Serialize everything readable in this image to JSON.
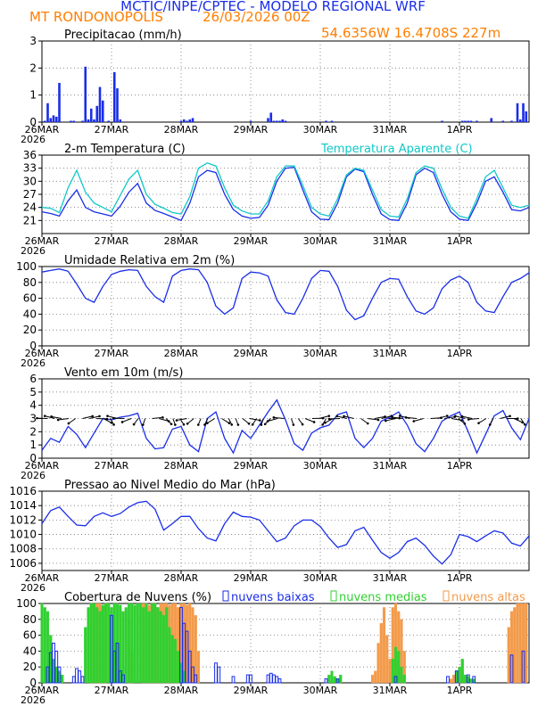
{
  "header": {
    "title": "MCTIC/INPE/CPTEC - MODELO REGIONAL WRF",
    "station": "MT RONDONOPOLIS",
    "run_date": "26/03/2026 00Z",
    "coordinates": "54.6356W 16.4708S 227m"
  },
  "colors": {
    "blue": "#1a2ee8",
    "cyan": "#10c8c8",
    "green": "#30d030",
    "orange": "#f39a4a",
    "black": "#000000"
  },
  "x_axis": {
    "tick_labels": [
      "26MAR",
      "27MAR",
      "28MAR",
      "29MAR",
      "30MAR",
      "31MAR",
      "1APR"
    ],
    "year_label": "2026",
    "start_hour": 0,
    "end_hour": 168
  },
  "chart_data": [
    {
      "id": "precip",
      "type": "bar",
      "title": "Precipitacao (mm/h)",
      "ylim": [
        0,
        3
      ],
      "yticks": [
        0,
        1,
        2,
        3
      ],
      "series": [
        {
          "name": "Precipitacao",
          "color": "#1a2ee8",
          "x": [
            1,
            2,
            3,
            4,
            5,
            6,
            10,
            11,
            14,
            15,
            16,
            17,
            18,
            19,
            20,
            21,
            23,
            25,
            26,
            27,
            48,
            49,
            50,
            51,
            52,
            72,
            78,
            79,
            80,
            81,
            82,
            83,
            84,
            98,
            100,
            138,
            145,
            146,
            147,
            148,
            150,
            155,
            159,
            162,
            164,
            165,
            166,
            167
          ],
          "values": [
            0.05,
            0.7,
            0.15,
            0.25,
            0.2,
            1.45,
            0.05,
            0.05,
            0.05,
            2.05,
            0.1,
            0.5,
            0.1,
            0.6,
            1.3,
            0.8,
            0.05,
            1.85,
            1.25,
            0.1,
            0.05,
            0.1,
            0.05,
            0.1,
            0.15,
            0.05,
            0.15,
            0.35,
            0.05,
            0.05,
            0.05,
            0.1,
            0.05,
            0.05,
            0.05,
            0.05,
            0.05,
            0.05,
            0.05,
            0.05,
            0.05,
            0.15,
            0.05,
            0.05,
            0.7,
            0.1,
            0.7,
            0.4
          ]
        }
      ]
    },
    {
      "id": "temp",
      "type": "line",
      "title": "2-m Temperatura (C)",
      "ylim": [
        18,
        36
      ],
      "yticks": [
        21,
        24,
        27,
        30,
        33,
        36
      ],
      "legend": "Temperatura Aparente (C)",
      "series": [
        {
          "name": "Temperatura",
          "color": "#1a2ee8",
          "x": [
            0,
            3,
            6,
            9,
            12,
            15,
            18,
            21,
            24,
            27,
            30,
            33,
            36,
            39,
            42,
            45,
            48,
            51,
            54,
            57,
            60,
            63,
            66,
            69,
            72,
            75,
            78,
            81,
            84,
            87,
            90,
            93,
            96,
            99,
            102,
            105,
            108,
            111,
            114,
            117,
            120,
            123,
            126,
            129,
            132,
            135,
            138,
            141,
            144,
            147,
            150,
            153,
            156,
            159,
            162,
            165,
            168
          ],
          "values": [
            23,
            22.6,
            22,
            25.5,
            28,
            24,
            23,
            22.5,
            22,
            24.3,
            27.5,
            29.5,
            25,
            23.3,
            22.6,
            21.8,
            21,
            25,
            31,
            32.5,
            32,
            27,
            23.5,
            22,
            21.5,
            21.7,
            24.5,
            30,
            33,
            33.2,
            28,
            23,
            21.3,
            21.2,
            25,
            31,
            32.8,
            32.2,
            27,
            22.5,
            21.2,
            21,
            25,
            31.5,
            33,
            32,
            27,
            23,
            21.3,
            21,
            25,
            30,
            31,
            27.5,
            23.5,
            23.2,
            24
          ]
        },
        {
          "name": "Temperatura Aparente",
          "color": "#10c8c8",
          "x": [
            0,
            3,
            6,
            9,
            12,
            15,
            18,
            21,
            24,
            27,
            30,
            33,
            36,
            39,
            42,
            45,
            48,
            51,
            54,
            57,
            60,
            63,
            66,
            69,
            72,
            75,
            78,
            81,
            84,
            87,
            90,
            93,
            96,
            99,
            102,
            105,
            108,
            111,
            114,
            117,
            120,
            123,
            126,
            129,
            132,
            135,
            138,
            141,
            144,
            147,
            150,
            153,
            156,
            159,
            162,
            165,
            168
          ],
          "values": [
            24,
            23.8,
            22.8,
            28.5,
            32.5,
            27.5,
            25,
            24,
            23,
            26.8,
            30.5,
            32.5,
            27,
            24.7,
            23.8,
            22.8,
            22.5,
            26.5,
            33,
            34.2,
            33.5,
            28.5,
            24.5,
            23.2,
            22.5,
            22.5,
            25.5,
            31,
            33.5,
            33.5,
            29,
            24,
            22.5,
            22,
            26,
            31.5,
            33,
            32.5,
            28,
            23.5,
            22,
            21.8,
            26,
            32,
            33.5,
            33,
            28.2,
            24,
            22,
            21.5,
            26,
            31,
            32.5,
            28.5,
            24.5,
            24,
            24.5
          ]
        }
      ]
    },
    {
      "id": "rh",
      "type": "line",
      "title": "Umidade Relativa em 2m (%)",
      "ylim": [
        0,
        100
      ],
      "yticks": [
        0,
        20,
        40,
        60,
        80,
        100
      ],
      "series": [
        {
          "name": "Umidade Relativa",
          "color": "#1a2ee8",
          "x": [
            0,
            3,
            6,
            9,
            12,
            15,
            18,
            21,
            24,
            27,
            30,
            33,
            36,
            39,
            42,
            45,
            48,
            51,
            54,
            57,
            60,
            63,
            66,
            69,
            72,
            75,
            78,
            81,
            84,
            87,
            90,
            93,
            96,
            99,
            102,
            105,
            108,
            111,
            114,
            117,
            120,
            123,
            126,
            129,
            132,
            135,
            138,
            141,
            144,
            147,
            150,
            153,
            156,
            159,
            162,
            165,
            168
          ],
          "values": [
            93,
            95,
            97,
            94,
            78,
            60,
            55,
            75,
            90,
            94,
            96,
            95,
            75,
            62,
            55,
            88,
            95,
            97,
            96,
            80,
            50,
            40,
            48,
            85,
            93,
            92,
            88,
            58,
            42,
            40,
            60,
            85,
            95,
            94,
            75,
            45,
            33,
            38,
            60,
            80,
            85,
            84,
            62,
            44,
            40,
            48,
            72,
            83,
            88,
            80,
            55,
            44,
            42,
            62,
            80,
            85,
            92
          ]
        }
      ]
    },
    {
      "id": "wind",
      "type": "line",
      "title": "Vento em 10m (m/s)",
      "ylim": [
        0,
        6
      ],
      "yticks": [
        0,
        1,
        2,
        3,
        4,
        5,
        6
      ],
      "series": [
        {
          "name": "Vento",
          "color": "#1a2ee8",
          "x": [
            0,
            3,
            6,
            9,
            12,
            15,
            18,
            21,
            24,
            27,
            30,
            33,
            36,
            39,
            42,
            45,
            48,
            51,
            54,
            57,
            60,
            63,
            66,
            69,
            72,
            75,
            78,
            81,
            84,
            87,
            90,
            93,
            96,
            99,
            102,
            105,
            108,
            111,
            114,
            117,
            120,
            123,
            126,
            129,
            132,
            135,
            138,
            141,
            144,
            147,
            150,
            153,
            156,
            159,
            162,
            165,
            168
          ],
          "values": [
            0.6,
            1.5,
            1.2,
            2.4,
            1.8,
            0.8,
            1.9,
            3,
            2.9,
            3.1,
            3.2,
            3.4,
            1.5,
            0.7,
            0.8,
            2.2,
            2.4,
            1,
            0.5,
            3,
            3.5,
            1.5,
            0.4,
            2.1,
            1.5,
            2.5,
            3.5,
            4.4,
            2.9,
            1.1,
            0.6,
            1.9,
            2.3,
            2.5,
            3.3,
            3.5,
            1.5,
            0.8,
            1.5,
            2.8,
            3.1,
            3.5,
            2.5,
            1.1,
            0.5,
            1.5,
            2.8,
            3.2,
            3.5,
            2,
            0.4,
            1.8,
            3.2,
            3.6,
            2.3,
            1.4,
            3
          ]
        }
      ]
    },
    {
      "id": "slp",
      "type": "line",
      "title": "Pressao ao Nivel Medio do Mar (hPa)",
      "ylim": [
        1005,
        1016
      ],
      "yticks": [
        1006,
        1008,
        1010,
        1012,
        1014,
        1016
      ],
      "series": [
        {
          "name": "Pressao",
          "color": "#1a2ee8",
          "x": [
            0,
            3,
            6,
            9,
            12,
            15,
            18,
            21,
            24,
            27,
            30,
            33,
            36,
            39,
            42,
            45,
            48,
            51,
            54,
            57,
            60,
            63,
            66,
            69,
            72,
            75,
            78,
            81,
            84,
            87,
            90,
            93,
            96,
            99,
            102,
            105,
            108,
            111,
            114,
            117,
            120,
            123,
            126,
            129,
            132,
            135,
            138,
            141,
            144,
            147,
            150,
            153,
            156,
            159,
            162,
            165,
            168
          ],
          "values": [
            1011.5,
            1013.3,
            1013.8,
            1012.5,
            1011.3,
            1011.2,
            1012.5,
            1013,
            1012.5,
            1012.9,
            1013.8,
            1014.4,
            1014.6,
            1013.5,
            1010.6,
            1011.5,
            1012.5,
            1012.5,
            1010.8,
            1009.5,
            1009.1,
            1011.5,
            1013.1,
            1012.5,
            1012.4,
            1012,
            1010.5,
            1009,
            1009.5,
            1011.2,
            1012,
            1012,
            1011.1,
            1009.5,
            1008.2,
            1008.6,
            1010.5,
            1011,
            1009.2,
            1007.5,
            1006.7,
            1007.5,
            1009,
            1009.5,
            1008.5,
            1007,
            1005.9,
            1007.2,
            1010,
            1009.7,
            1009,
            1009.8,
            1010.5,
            1010.2,
            1008.8,
            1008.4,
            1009.8
          ]
        }
      ]
    },
    {
      "id": "clouds",
      "type": "bar",
      "title": "Cobertura de Nuvens (%)",
      "ylim": [
        0,
        100
      ],
      "yticks": [
        0,
        20,
        40,
        60,
        80,
        100
      ],
      "legend": [
        "nuvens baixas",
        "nuvens medias",
        "nuvens altas"
      ],
      "series": [
        {
          "name": "nuvens baixas",
          "color": "#1a2ee8",
          "x": [
            2,
            3,
            4,
            5,
            6,
            11,
            12,
            13,
            14,
            24,
            25,
            26,
            27,
            28,
            48,
            49,
            50,
            51,
            52,
            53,
            60,
            61,
            66,
            71,
            72,
            78,
            79,
            80,
            81,
            82,
            98,
            102,
            122,
            140,
            143,
            147,
            149,
            162,
            166
          ],
          "values": [
            20,
            38,
            50,
            40,
            20,
            8,
            18,
            15,
            8,
            85,
            40,
            50,
            15,
            10,
            95,
            75,
            65,
            40,
            20,
            10,
            25,
            20,
            8,
            10,
            10,
            10,
            12,
            10,
            8,
            5,
            5,
            5,
            8,
            8,
            15,
            10,
            8,
            35,
            40
          ]
        },
        {
          "name": "nuvens medias",
          "color": "#30d030",
          "x": [
            0,
            1,
            2,
            3,
            4,
            5,
            6,
            7,
            15,
            16,
            17,
            18,
            19,
            20,
            21,
            22,
            23,
            24,
            25,
            26,
            27,
            28,
            29,
            30,
            31,
            32,
            33,
            34,
            35,
            36,
            37,
            38,
            39,
            40,
            41,
            42,
            43,
            44,
            45,
            46,
            47,
            48,
            49,
            99,
            100,
            101,
            102,
            103,
            121,
            122,
            123,
            124,
            125,
            143,
            144,
            145,
            146,
            147,
            148,
            149
          ],
          "values": [
            100,
            95,
            90,
            60,
            30,
            20,
            15,
            10,
            70,
            95,
            100,
            100,
            95,
            90,
            98,
            100,
            100,
            95,
            100,
            100,
            98,
            90,
            95,
            100,
            100,
            98,
            100,
            100,
            95,
            100,
            90,
            100,
            100,
            95,
            90,
            85,
            95,
            70,
            60,
            55,
            40,
            25,
            15,
            10,
            15,
            8,
            5,
            10,
            30,
            45,
            40,
            20,
            10,
            15,
            20,
            30,
            10,
            8,
            5,
            5
          ]
        },
        {
          "name": "nuvens altas",
          "color": "#f39a4a",
          "x": [
            17,
            18,
            19,
            20,
            21,
            22,
            30,
            31,
            35,
            36,
            37,
            38,
            39,
            40,
            41,
            42,
            43,
            44,
            45,
            46,
            47,
            48,
            49,
            50,
            51,
            52,
            53,
            54,
            114,
            115,
            116,
            117,
            118,
            119,
            120,
            121,
            122,
            123,
            124,
            125,
            141,
            142,
            143,
            144,
            145,
            146,
            147,
            148,
            161,
            162,
            163,
            164,
            165,
            166,
            167
          ],
          "values": [
            100,
            95,
            100,
            100,
            95,
            100,
            80,
            40,
            100,
            100,
            98,
            100,
            100,
            95,
            100,
            100,
            100,
            98,
            100,
            100,
            95,
            100,
            100,
            98,
            100,
            95,
            85,
            40,
            10,
            15,
            50,
            75,
            95,
            60,
            30,
            95,
            100,
            90,
            80,
            40,
            5,
            10,
            8,
            20,
            15,
            10,
            8,
            5,
            70,
            90,
            95,
            100,
            100,
            100,
            100
          ]
        }
      ]
    }
  ]
}
